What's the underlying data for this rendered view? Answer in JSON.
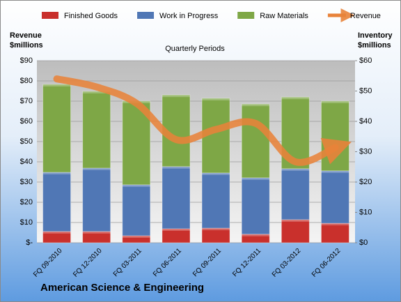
{
  "chart_data": {
    "type": "bar",
    "stacked": true,
    "title": "Quarterly Periods",
    "y_label": "Revenue\n$millions",
    "y2_label": "Inventory\n$millions",
    "footer": "American Science & Engineering",
    "categories": [
      "FQ 09-2010",
      "FQ 12-2010",
      "FQ 03-2011",
      "FQ 06-2011",
      "FQ 09-2011",
      "FQ 12-2011",
      "FQ 03-2012",
      "FQ 06-2012"
    ],
    "series": [
      {
        "name": "Finished Goods",
        "color": "#c9302c",
        "axis": "y2",
        "values": [
          3.7,
          3.7,
          2.3,
          4.6,
          4.8,
          2.8,
          7.6,
          6.4
        ]
      },
      {
        "name": "Work in Progress",
        "color": "#5077b5",
        "axis": "y2",
        "values": [
          19.5,
          20.9,
          16.8,
          20.5,
          18.2,
          18.6,
          16.8,
          17.3
        ]
      },
      {
        "name": "Raw Materials",
        "color": "#7ea746",
        "axis": "y2",
        "values": [
          29.0,
          25.3,
          27.6,
          23.6,
          24.6,
          24.3,
          23.6,
          23.0
        ]
      },
      {
        "name": "Revenue",
        "color": "#e8833a",
        "type": "line",
        "axis": "y",
        "values": [
          81,
          77,
          69,
          51,
          56,
          59,
          40,
          47
        ]
      }
    ],
    "ylim": [
      0,
      90
    ],
    "yticks": [
      {
        "value": 0,
        "label": "$-"
      },
      {
        "value": 10,
        "label": "$10"
      },
      {
        "value": 20,
        "label": "$20"
      },
      {
        "value": 30,
        "label": "$30"
      },
      {
        "value": 40,
        "label": "$40"
      },
      {
        "value": 50,
        "label": "$50"
      },
      {
        "value": 60,
        "label": "$60"
      },
      {
        "value": 70,
        "label": "$70"
      },
      {
        "value": 80,
        "label": "$80"
      },
      {
        "value": 90,
        "label": "$90"
      }
    ],
    "y2lim": [
      0,
      60
    ],
    "y2ticks": [
      {
        "value": 0,
        "label": "$0"
      },
      {
        "value": 10,
        "label": "$10"
      },
      {
        "value": 20,
        "label": "$20"
      },
      {
        "value": 30,
        "label": "$30"
      },
      {
        "value": 40,
        "label": "$40"
      },
      {
        "value": 50,
        "label": "$50"
      },
      {
        "value": 60,
        "label": "$60"
      }
    ],
    "grid": true
  }
}
